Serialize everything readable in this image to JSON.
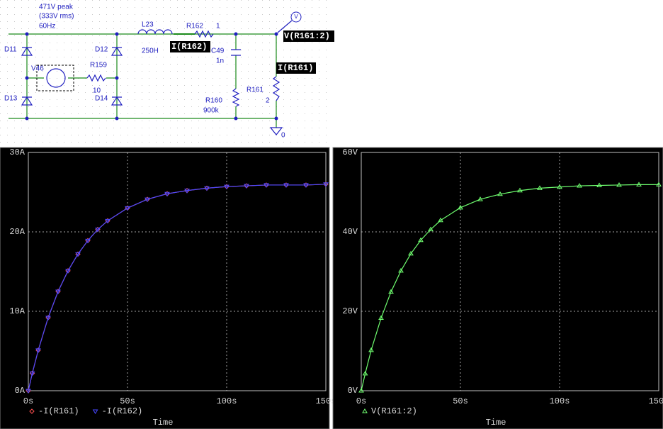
{
  "schematic": {
    "source_note": [
      "471V peak",
      "(333V rms)",
      "60Hz"
    ],
    "labels": [
      "D11",
      "D12",
      "D13",
      "D14",
      "V46",
      "R159",
      "10",
      "L23",
      "250H",
      "R162",
      "1",
      "C49",
      "1n",
      "R160",
      "900k",
      "R161",
      "2",
      "0"
    ],
    "probes": [
      "I(R162)",
      "I(R161)",
      "V(R161:2)"
    ],
    "probe_marker": "V"
  },
  "chart_data": [
    {
      "type": "line",
      "xlabel": "Time",
      "x": [
        0,
        2,
        5,
        10,
        15,
        20,
        25,
        30,
        35,
        40,
        50,
        60,
        70,
        80,
        90,
        100,
        110,
        120,
        130,
        140,
        150
      ],
      "xlim": [
        0,
        150
      ],
      "xticks": [
        {
          "value": 0,
          "label": "0s"
        },
        {
          "value": 50,
          "label": "50s"
        },
        {
          "value": 100,
          "label": "100s"
        },
        {
          "value": 150,
          "label": "150s"
        }
      ],
      "ylim": [
        0,
        30
      ],
      "yticks": [
        {
          "value": 0,
          "label": "0A"
        },
        {
          "value": 10,
          "label": "10A"
        },
        {
          "value": 20,
          "label": "20A"
        },
        {
          "value": 30,
          "label": "30A"
        }
      ],
      "grid": true,
      "series": [
        {
          "name": "-I(R161)",
          "color": "#ff5050",
          "marker": "diamond",
          "values": [
            0,
            2.2,
            5.1,
            9.2,
            12.5,
            15.1,
            17.2,
            18.9,
            20.3,
            21.4,
            23.0,
            24.1,
            24.8,
            25.2,
            25.5,
            25.7,
            25.8,
            25.9,
            25.9,
            25.9,
            26.0
          ]
        },
        {
          "name": "-I(R162)",
          "color": "#4848ff",
          "marker": "triangle-down",
          "values": [
            0,
            2.2,
            5.1,
            9.2,
            12.5,
            15.1,
            17.2,
            18.9,
            20.3,
            21.4,
            23.0,
            24.1,
            24.8,
            25.2,
            25.5,
            25.7,
            25.8,
            25.9,
            25.9,
            25.9,
            26.0
          ]
        }
      ]
    },
    {
      "type": "line",
      "xlabel": "Time",
      "x": [
        0,
        2,
        5,
        10,
        15,
        20,
        25,
        30,
        35,
        40,
        50,
        60,
        70,
        80,
        90,
        100,
        110,
        120,
        130,
        140,
        150
      ],
      "xlim": [
        0,
        150
      ],
      "xticks": [
        {
          "value": 0,
          "label": "0s"
        },
        {
          "value": 50,
          "label": "50s"
        },
        {
          "value": 100,
          "label": "100s"
        },
        {
          "value": 150,
          "label": "150s"
        }
      ],
      "ylim": [
        0,
        60
      ],
      "yticks": [
        {
          "value": 0,
          "label": "0V"
        },
        {
          "value": 20,
          "label": "20V"
        },
        {
          "value": 40,
          "label": "40V"
        },
        {
          "value": 60,
          "label": "60V"
        }
      ],
      "grid": true,
      "series": [
        {
          "name": "V(R161:2)",
          "color": "#70ff70",
          "marker": "triangle-up",
          "values": [
            0,
            4.3,
            10.2,
            18.3,
            24.9,
            30.2,
            34.5,
            37.9,
            40.6,
            42.9,
            46.1,
            48.2,
            49.5,
            50.4,
            51.0,
            51.3,
            51.6,
            51.7,
            51.8,
            51.9,
            51.9
          ]
        }
      ]
    }
  ]
}
